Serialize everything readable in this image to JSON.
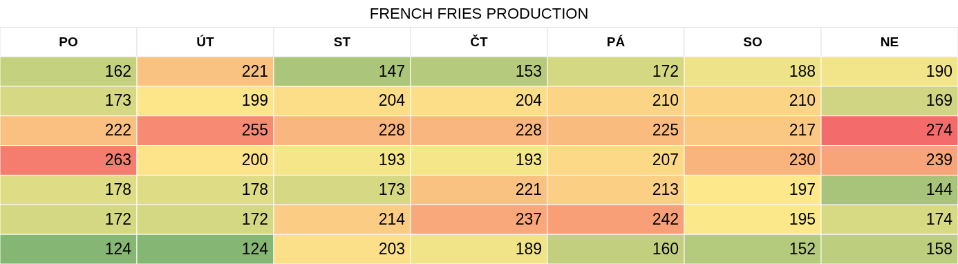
{
  "chart_data": {
    "type": "heatmap",
    "title": "FRENCH FRIES PRODUCTION",
    "categories": [
      "PO",
      "ÚT",
      "ST",
      "ČT",
      "PÁ",
      "SO",
      "NE"
    ],
    "y_categories": [
      null,
      null,
      null,
      null,
      null,
      null,
      null
    ],
    "cells": [
      [
        162,
        221,
        147,
        153,
        172,
        188,
        190
      ],
      [
        173,
        199,
        204,
        204,
        210,
        210,
        169
      ],
      [
        222,
        255,
        228,
        228,
        225,
        217,
        274
      ],
      [
        263,
        200,
        193,
        193,
        207,
        230,
        239
      ],
      [
        178,
        178,
        173,
        221,
        213,
        197,
        144
      ],
      [
        172,
        172,
        214,
        237,
        242,
        195,
        174
      ],
      [
        124,
        124,
        203,
        189,
        160,
        152,
        158
      ]
    ],
    "data_labels": true
  }
}
